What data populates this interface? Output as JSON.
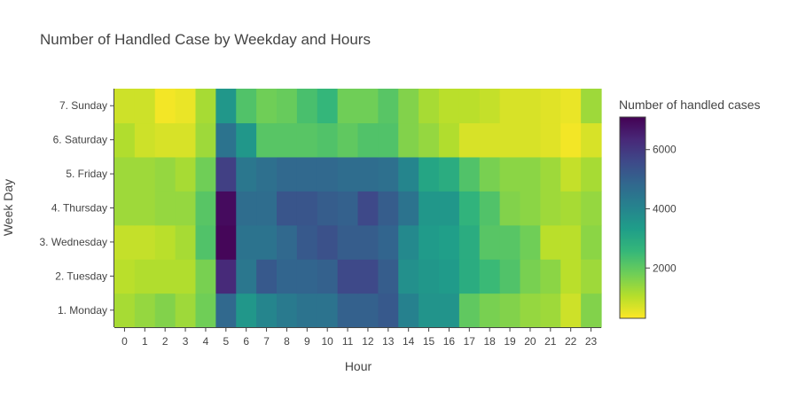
{
  "chart_data": {
    "type": "heatmap",
    "title": "Number of Handled Case by Weekday and Hours",
    "xlabel": "Hour",
    "ylabel": "Week Day",
    "colorbar_title": "Number of handled cases",
    "colorscale": "viridis (reversed: low = yellow, high = dark purple)",
    "colorscale_stops": [
      "#fde725",
      "#b5de2b",
      "#6ece58",
      "#35b779",
      "#1f9e89",
      "#26828e",
      "#31688e",
      "#3e4989",
      "#482878",
      "#440154"
    ],
    "zmin": 300,
    "zmax": 7100,
    "colorbar_ticks": [
      2000,
      4000,
      6000
    ],
    "colorbar_tick_labels": [
      "2000",
      "4000",
      "6000"
    ],
    "x": [
      "0",
      "1",
      "2",
      "3",
      "4",
      "5",
      "6",
      "7",
      "8",
      "9",
      "10",
      "11",
      "12",
      "13",
      "14",
      "15",
      "16",
      "17",
      "18",
      "19",
      "20",
      "21",
      "22",
      "23"
    ],
    "y": [
      "1. Monday",
      "2. Tuesday",
      "3. Wednesday",
      "4. Thursday",
      "5. Friday",
      "6. Saturday",
      "7. Sunday"
    ],
    "z": [
      [
        1200,
        1400,
        1600,
        1300,
        1800,
        4800,
        3500,
        4000,
        4300,
        4500,
        4500,
        5000,
        5000,
        5200,
        4100,
        3600,
        3600,
        2000,
        1700,
        1600,
        1400,
        1300,
        800,
        1600
      ],
      [
        1000,
        1100,
        1100,
        1100,
        1700,
        6300,
        4400,
        5200,
        4900,
        4900,
        5000,
        5600,
        5600,
        5100,
        3700,
        3500,
        3400,
        2900,
        2500,
        2200,
        1700,
        1500,
        1000,
        1300
      ],
      [
        900,
        900,
        1000,
        1200,
        2200,
        7000,
        4500,
        4500,
        4800,
        5200,
        5400,
        5100,
        5100,
        4900,
        3900,
        3400,
        3300,
        2900,
        2100,
        2100,
        1800,
        1000,
        1000,
        1500
      ],
      [
        1300,
        1300,
        1400,
        1400,
        2100,
        6900,
        4700,
        4700,
        5300,
        5300,
        5100,
        5000,
        5600,
        5100,
        4500,
        3500,
        3500,
        2700,
        2200,
        1600,
        1500,
        1300,
        1200,
        1400
      ],
      [
        1300,
        1300,
        1400,
        1200,
        1800,
        5800,
        4400,
        4600,
        4800,
        4800,
        4800,
        4700,
        4700,
        4600,
        4000,
        3100,
        2900,
        2200,
        1700,
        1500,
        1500,
        1300,
        900,
        1200
      ],
      [
        1100,
        800,
        700,
        700,
        1300,
        4500,
        3500,
        2100,
        2100,
        2100,
        2200,
        2000,
        2200,
        2200,
        1600,
        1400,
        1100,
        700,
        700,
        700,
        700,
        600,
        400,
        700
      ],
      [
        800,
        800,
        400,
        500,
        1200,
        3500,
        2200,
        1800,
        1900,
        2300,
        2600,
        1800,
        1800,
        2100,
        1600,
        1200,
        1000,
        1000,
        900,
        700,
        700,
        600,
        500,
        1300
      ]
    ]
  }
}
